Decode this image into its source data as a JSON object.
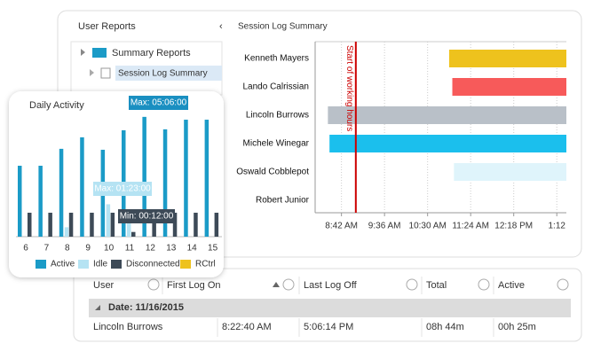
{
  "panel": {
    "title": "User Reports",
    "report_title": "Session Log Summary"
  },
  "tree": {
    "group": "Summary Reports",
    "items": [
      "Session Log Summary"
    ]
  },
  "chart_data": [
    {
      "type": "gantt",
      "categories": [
        "Kenneth Mayers",
        "Lando Calrissian",
        "Lincoln Burrows",
        "Michele Winegar",
        "Oswald Cobblepot",
        "Robert Junior"
      ],
      "starts": [
        657,
        661,
        505,
        507,
        663,
        null
      ],
      "ends": [
        804,
        804,
        804,
        804,
        804,
        null
      ],
      "colors": [
        "#eec21d",
        "#f75a5a",
        "#b9c0c8",
        "#1bbfed",
        "#dff4fb",
        null
      ],
      "xlim": [
        489,
        804
      ],
      "xticks": [
        {
          "value": 522,
          "label": "8:42 AM"
        },
        {
          "value": 576,
          "label": "9:36 AM"
        },
        {
          "value": 630,
          "label": "10:30 AM"
        },
        {
          "value": 684,
          "label": "11:24 AM"
        },
        {
          "value": 738,
          "label": "12:18 PM"
        },
        {
          "value": 792,
          "label": "1:12"
        }
      ],
      "grid": true,
      "annotation": {
        "text": "Start of working hours",
        "value": 540,
        "color": "#cc0000"
      }
    },
    {
      "type": "bar",
      "title": "Daily Activity",
      "categories": [
        "6",
        "7",
        "8",
        "9",
        "10",
        "11",
        "12",
        "13",
        "14",
        "15"
      ],
      "series": [
        {
          "name": "Active",
          "color": "#1b9bc7",
          "values": [
            3.02,
            3.02,
            3.74,
            4.23,
            3.7,
            4.53,
            5.1,
            4.57,
            4.98,
            4.98
          ]
        },
        {
          "name": "Idle",
          "color": "#b5e3f3",
          "values": [
            0,
            0,
            0.4,
            0,
            1.38,
            0.6,
            0,
            0,
            0,
            0
          ]
        },
        {
          "name": "Disconnected",
          "color": "#3d4a57",
          "values": [
            1.02,
            1.02,
            1.02,
            1.02,
            1.02,
            0.2,
            1.02,
            1.02,
            1.02,
            1.02
          ]
        },
        {
          "name": "RCtrl",
          "color": "#eec21d",
          "values": [
            0,
            0,
            0,
            0,
            0,
            0,
            0,
            0,
            0,
            0
          ]
        }
      ],
      "ylim": [
        0,
        5.3
      ],
      "annotations": [
        "Max: 05:06:00",
        "Max: 01:23:00",
        "Min: 00:12:00"
      ]
    }
  ],
  "table": {
    "headers": [
      "User",
      "First Log On",
      "Last Log Off",
      "Total",
      "Active"
    ],
    "group": "Date: 11/16/2015",
    "rows": [
      [
        "Lincoln Burrows",
        "8:22:40 AM",
        "5:06:14 PM",
        "08h 44m",
        "00h 25m"
      ]
    ]
  }
}
